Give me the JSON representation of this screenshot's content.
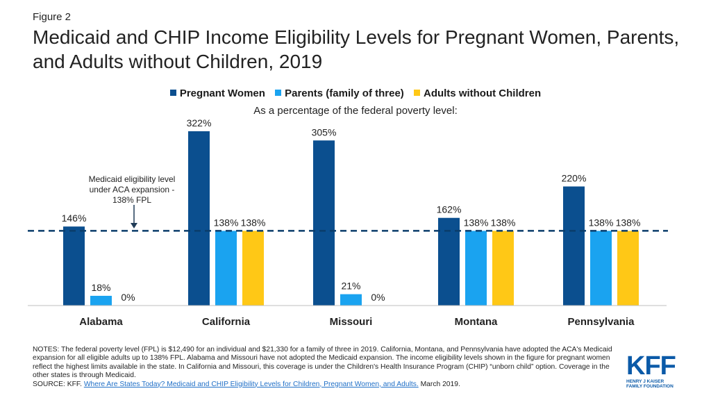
{
  "figure_label": "Figure 2",
  "title": "Medicaid and CHIP Income Eligibility Levels for Pregnant Women, Parents, and Adults without Children, 2019",
  "chart_data": {
    "type": "bar",
    "subtitle": "As a percentage of the federal poverty level:",
    "categories": [
      "Alabama",
      "California",
      "Missouri",
      "Montana",
      "Pennsylvania"
    ],
    "series": [
      {
        "name": "Pregnant Women",
        "color": "#0b4f8f",
        "values": [
          146,
          322,
          305,
          162,
          220
        ],
        "labels": [
          "146%",
          "322%",
          "305%",
          "162%",
          "220%"
        ]
      },
      {
        "name": "Parents (family of three)",
        "color": "#1aa3f0",
        "values": [
          18,
          138,
          21,
          138,
          138
        ],
        "labels": [
          "18%",
          "138%",
          "21%",
          "138%",
          "138%"
        ]
      },
      {
        "name": "Adults without Children",
        "color": "#ffc816",
        "values": [
          0,
          138,
          0,
          138,
          138
        ],
        "labels": [
          "0%",
          "138%",
          "0%",
          "138%",
          "138%"
        ]
      }
    ],
    "reference_line": {
      "value": 138,
      "style": "dashed",
      "color": "#0b3d6b"
    },
    "annotation": {
      "lines": [
        "Medicaid eligibility level",
        "under ACA expansion -",
        "138% FPL"
      ],
      "arrow": "down"
    },
    "ylim": [
      0,
      345
    ],
    "legend_position": "top-center",
    "grid": false
  },
  "notes": "NOTES: The federal poverty level (FPL) is $12,490 for an individual and $21,330 for a family of three in 2019. California, Montana, and Pennsylvania have adopted the ACA's Medicaid expansion for all eligible adults up to 138% FPL. Alabama and Missouri have not adopted the Medicaid expansion. The income eligibility levels shown in the figure for pregnant women reflect the highest limits available in the state. In California and Missouri, this coverage is under the Children's Health Insurance Program (CHIP) “unborn child” option. Coverage in the other states is through Medicaid.",
  "source": {
    "prefix": "SOURCE: KFF. ",
    "link_text": "Where Are States Today? Medicaid and CHIP Eligibility Levels for Children, Pregnant Women, and Adults.",
    "suffix": " March 2019."
  },
  "logo": {
    "mark": "KFF",
    "line1": "HENRY J KAISER",
    "line2": "FAMILY FOUNDATION"
  }
}
